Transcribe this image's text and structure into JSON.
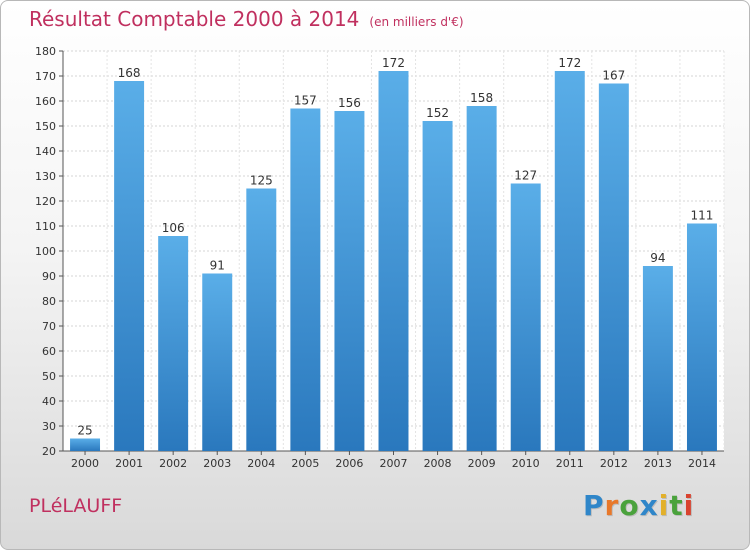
{
  "title": "Résultat Comptable 2000 à 2014",
  "unit": "(en milliers d'€)",
  "commune": "PLéLAUFF",
  "logo": {
    "letters": [
      {
        "char": "P",
        "color": "#2f86c9"
      },
      {
        "char": "r",
        "color": "#e8782a"
      },
      {
        "char": "o",
        "color": "#4aa23c"
      },
      {
        "char": "x",
        "color": "#2f86c9"
      },
      {
        "char": "i",
        "color": "#e2b02a"
      },
      {
        "char": "t",
        "color": "#4aa23c"
      },
      {
        "char": "i",
        "color": "#d9432f"
      }
    ]
  },
  "chart_data": {
    "type": "bar",
    "categories": [
      "2000",
      "2001",
      "2002",
      "2003",
      "2004",
      "2005",
      "2006",
      "2007",
      "2008",
      "2009",
      "2010",
      "2011",
      "2012",
      "2013",
      "2014"
    ],
    "values": [
      25,
      168,
      106,
      91,
      125,
      157,
      156,
      172,
      152,
      158,
      127,
      172,
      167,
      94,
      111
    ],
    "ylim": [
      20,
      180
    ],
    "yticks": [
      20,
      30,
      40,
      50,
      60,
      70,
      80,
      90,
      100,
      110,
      120,
      130,
      140,
      150,
      160,
      170,
      180
    ],
    "grid": true,
    "bar_color_light": "#5aaee8",
    "bar_color_dark": "#2a78bd"
  }
}
